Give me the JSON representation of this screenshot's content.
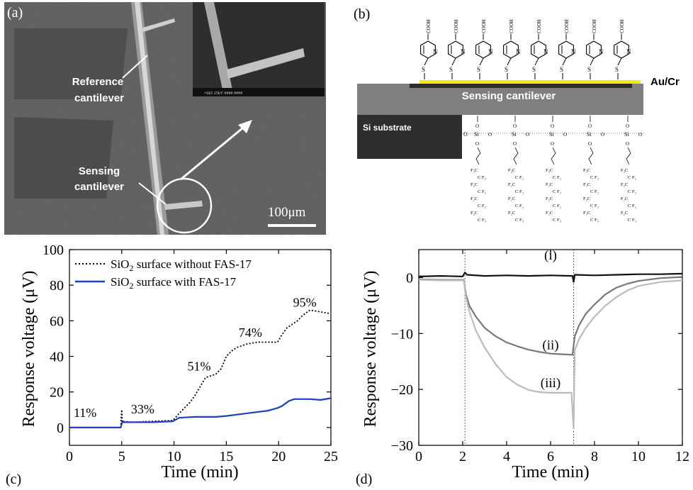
{
  "panels": {
    "a": {
      "label": "(a)",
      "reference_label_1": "Reference",
      "reference_label_2": "cantilever",
      "sensing_label_1": "Sensing",
      "sensing_label_2": "cantilever",
      "inset_footer": "×6k5   25kV  ####   ####",
      "scale_bar_label": "100μm"
    },
    "b": {
      "label": "(b)",
      "au_cr_label": "Au/Cr",
      "sensing_cantilever_label": "Sensing cantilever",
      "si_substrate_label": "Si substrate",
      "head_group": "COOH",
      "ring_atom": "N",
      "thiol_atom": "S",
      "oxygen": "O",
      "silicon": "Si",
      "fluoro_rows": [
        "F₃C",
        "C F₂",
        "F₂C",
        "C F₂",
        "F₂C",
        "C F₂",
        "F₂C",
        "C F₃"
      ],
      "molecule_count": 8,
      "silane_count": 5
    },
    "c": {
      "label": "(c)",
      "chart_data": {
        "type": "line",
        "xlabel": "Time (min)",
        "ylabel": "Response voltage (μV)",
        "xlim": [
          0,
          25
        ],
        "ylim": [
          -10,
          100
        ],
        "xticks": [
          "0",
          "5",
          "10",
          "15",
          "20",
          "25"
        ],
        "yticks": [
          "0",
          "20",
          "40",
          "60",
          "80",
          "100"
        ],
        "legend_position": "top-left",
        "legend": [
          {
            "pre": "SiO",
            "sub": "2",
            "post": " surface without FAS-17",
            "style": "dotted",
            "color": "#000000"
          },
          {
            "pre": "SiO",
            "sub": "2",
            "post": " surface with FAS-17",
            "style": "solid",
            "color": "#1f3fbf"
          }
        ],
        "annotations": [
          {
            "text": "11%",
            "x": 1.5,
            "y": 6
          },
          {
            "text": "33%",
            "x": 7.0,
            "y": 8
          },
          {
            "text": "51%",
            "x": 12.4,
            "y": 32
          },
          {
            "text": "74%",
            "x": 17.3,
            "y": 51
          },
          {
            "text": "95%",
            "x": 22.5,
            "y": 68
          }
        ],
        "series": [
          {
            "style": "dotted",
            "color": "#000000",
            "x": [
              0,
              2,
              4.9,
              5.0,
              5.05,
              5.1,
              6,
              8,
              9.9,
              10.5,
              11.5,
              12,
              12.5,
              13,
              13.5,
              14,
              14.5,
              15,
              15.5,
              16,
              16.5,
              17,
              18,
              19,
              19.9,
              20.3,
              20.8,
              21.3,
              21.8,
              22.3,
              23,
              24,
              25
            ],
            "y": [
              0,
              0,
              0,
              10,
              3,
              3.5,
              3,
              3.5,
              4,
              8,
              14,
              18,
              23,
              28,
              29,
              30,
              33,
              40,
              43,
              45,
              46,
              47,
              48,
              48,
              48,
              52,
              56,
              58,
              60,
              63,
              66,
              65,
              64
            ]
          },
          {
            "style": "solid",
            "color": "#1f3fbf",
            "x": [
              0,
              2,
              4.9,
              5.05,
              6,
              8,
              9.9,
              10.5,
              12,
              14,
              15,
              17,
              19,
              19.9,
              20.3,
              21,
              21.5,
              23,
              24,
              25
            ],
            "y": [
              0,
              0,
              0,
              3,
              3,
              3,
              3.5,
              5.5,
              6,
              6,
              6.5,
              8,
              9.5,
              11,
              12,
              15,
              16,
              16,
              15.5,
              16.5
            ]
          }
        ]
      }
    },
    "d": {
      "label": "(d)",
      "chart_data": {
        "type": "line",
        "xlabel": "Time (min)",
        "ylabel": "Response voltage (μV)",
        "xlim": [
          0,
          12
        ],
        "ylim": [
          -30,
          5
        ],
        "xticks": [
          "0",
          "2",
          "4",
          "6",
          "8",
          "10",
          "12"
        ],
        "yticks": [
          "−30",
          "−20",
          "−10",
          "0"
        ],
        "vlines": [
          2.1,
          7.05
        ],
        "labels": [
          {
            "text": "(i)",
            "x": 6.0,
            "y": 3.2
          },
          {
            "text": "(ii)",
            "x": 6.0,
            "y": -12.8
          },
          {
            "text": "(iii)",
            "x": 6.0,
            "y": -19.6
          }
        ],
        "series": [
          {
            "name": "(i)",
            "color": "#111111",
            "x": [
              0,
              1,
              2.0,
              2.1,
              2.2,
              3,
              4,
              5,
              6,
              7.0,
              7.05,
              7.1,
              8,
              9,
              10,
              11,
              12
            ],
            "y": [
              0.2,
              0.3,
              0.2,
              0.9,
              0.5,
              0.3,
              0.4,
              0.3,
              0.4,
              0.3,
              -0.8,
              0.5,
              0.4,
              0.5,
              0.6,
              0.6,
              0.7
            ]
          },
          {
            "name": "(ii)",
            "color": "#777777",
            "x": [
              0,
              1,
              2.05,
              2.15,
              2.3,
              2.6,
              3,
              3.5,
              4,
              4.5,
              5,
              5.5,
              6,
              6.5,
              7.0,
              7.1,
              7.3,
              7.6,
              8,
              8.5,
              9,
              9.5,
              10,
              11,
              12
            ],
            "y": [
              -0.3,
              -0.4,
              -0.4,
              -3,
              -5,
              -7,
              -9,
              -10.5,
              -11.6,
              -12.3,
              -12.9,
              -13.3,
              -13.6,
              -13.7,
              -13.8,
              -10.5,
              -8.5,
              -6.5,
              -4.8,
              -3,
              -1.8,
              -1.1,
              -0.6,
              -0.1,
              0.1
            ]
          },
          {
            "name": "(iii)",
            "color": "#bbbbbb",
            "x": [
              0,
              1,
              2.05,
              2.15,
              2.3,
              2.6,
              3,
              3.5,
              4,
              4.5,
              5,
              5.5,
              6,
              6.5,
              6.95,
              7.05,
              7.1,
              7.3,
              7.6,
              8,
              8.5,
              9,
              9.5,
              10,
              11,
              12
            ],
            "y": [
              -0.4,
              -0.5,
              -0.5,
              -3.5,
              -6,
              -9.5,
              -12.5,
              -15.5,
              -17.8,
              -19.2,
              -20.1,
              -20.5,
              -20.6,
              -20.6,
              -20.6,
              -27,
              -13,
              -11,
              -9,
              -7,
              -5,
              -3.5,
              -2.3,
              -1.5,
              -0.8,
              -0.5
            ]
          }
        ]
      }
    }
  }
}
